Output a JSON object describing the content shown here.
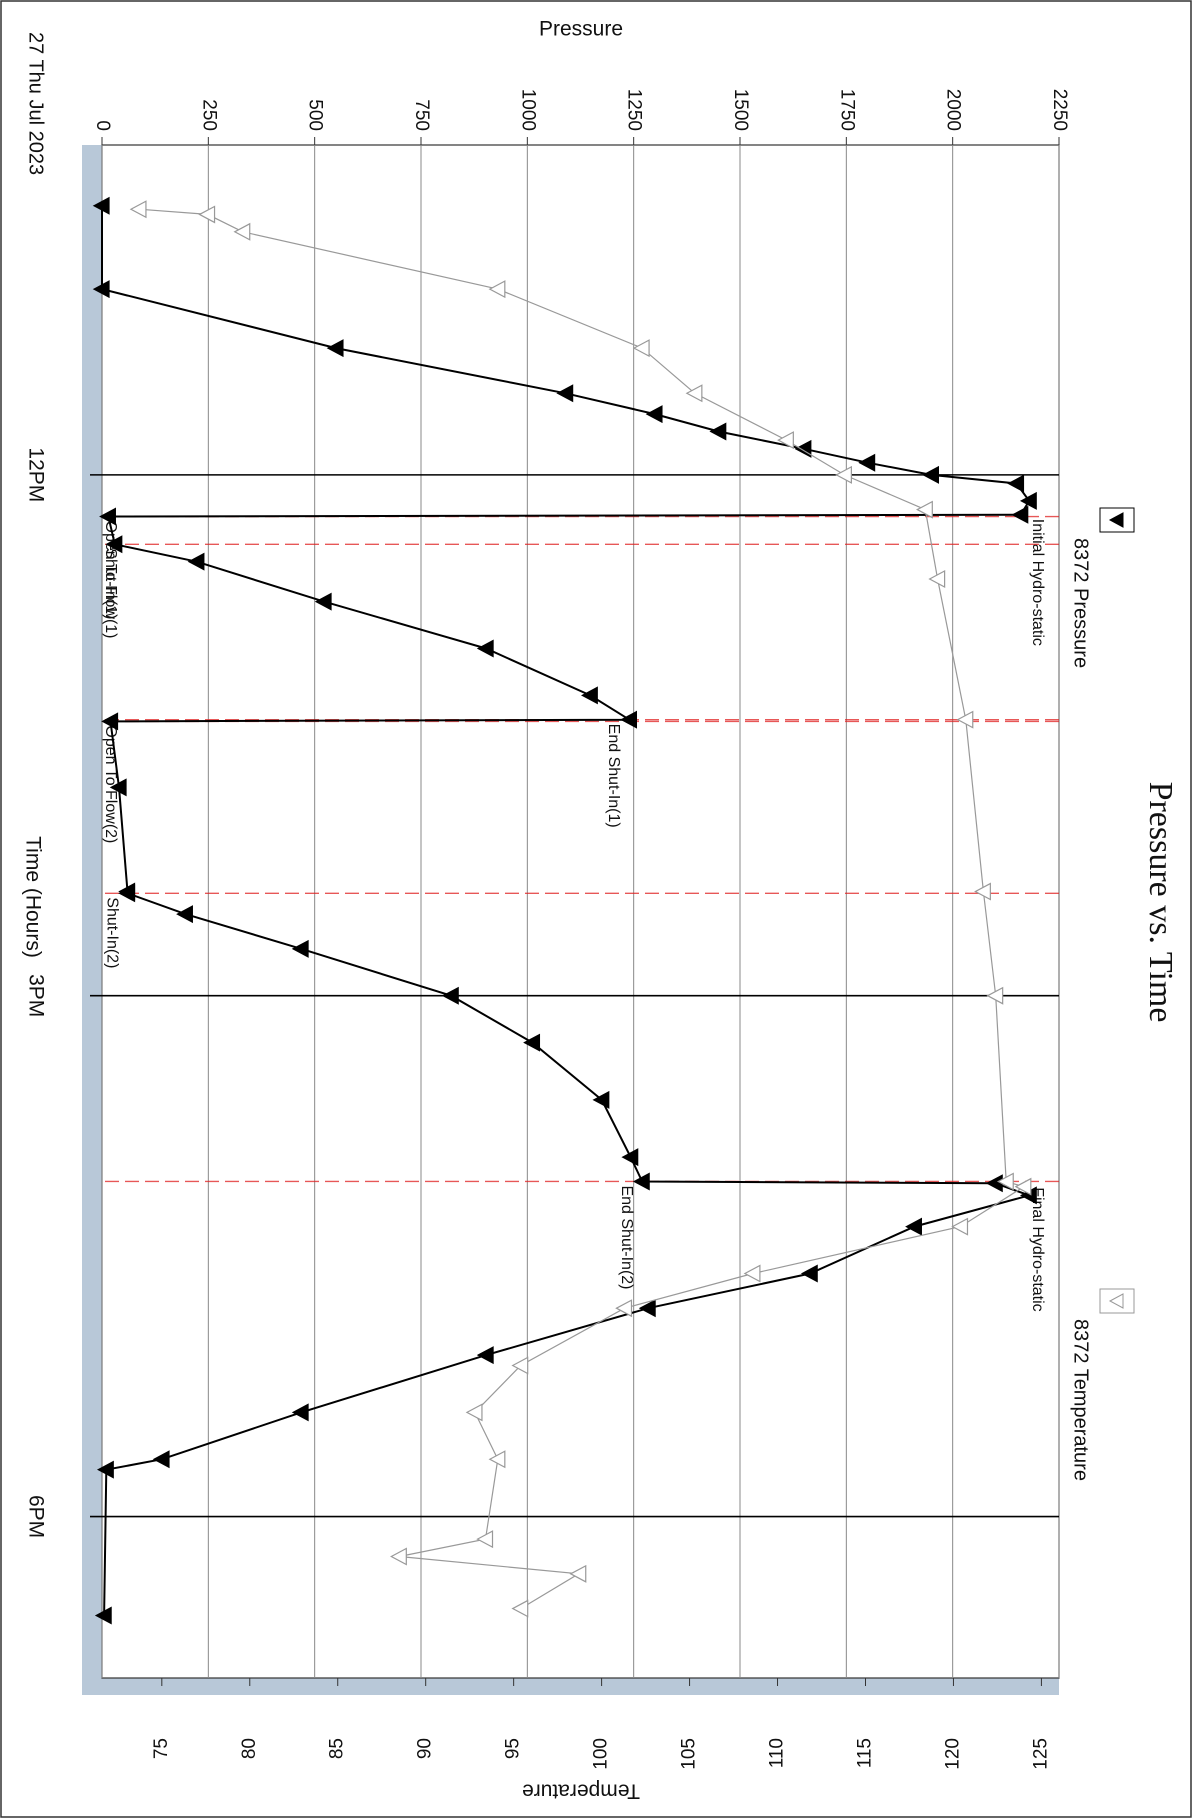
{
  "chart_data": {
    "type": "line",
    "title": "Pressure vs. Time",
    "date_label": "27 Thu Jul 2023",
    "x_label": "Time (Hours)",
    "y_label": "Pressure",
    "y2_label": "Temperature",
    "xlim": [
      10.1,
      18.93
    ],
    "xticks": [
      {
        "value": 12,
        "label": "12PM"
      },
      {
        "value": 15,
        "label": "3PM"
      },
      {
        "value": 18,
        "label": "6PM"
      }
    ],
    "ylim": [
      0,
      2250
    ],
    "yticks": [
      0,
      250,
      500,
      750,
      1000,
      1250,
      1500,
      1750,
      2000,
      2250
    ],
    "y2lim": [
      71.6,
      126
    ],
    "y2ticks": [
      75,
      80,
      85,
      90,
      95,
      100,
      105,
      110,
      115,
      120,
      125
    ],
    "grid": true,
    "series": [
      {
        "name": "8372 Pressure",
        "color": "#000000",
        "marker": "filled",
        "x": [
          10.45,
          10.93,
          11.27,
          11.53,
          11.65,
          11.75,
          11.85,
          11.93,
          12.0,
          12.05,
          12.15,
          12.23,
          12.24,
          12.4,
          12.5,
          12.73,
          13.0,
          13.27,
          13.41,
          13.42,
          13.8,
          14.4,
          14.41,
          14.53,
          14.73,
          15.0,
          15.27,
          15.6,
          15.93,
          16.07,
          16.08,
          16.15,
          16.33,
          16.6,
          16.8,
          17.07,
          17.4,
          17.67,
          17.73,
          18.57
        ],
        "values": [
          0,
          0,
          550,
          1090,
          1300,
          1450,
          1650,
          1800,
          1950,
          2150,
          2180,
          2160,
          15,
          30,
          223,
          522,
          903,
          1148,
          1240,
          20,
          40,
          60,
          60,
          196,
          468,
          821,
          1012,
          1175,
          1243,
          1270,
          2100,
          2180,
          1910,
          1665,
          1284,
          903,
          468,
          141,
          10,
          5
        ]
      },
      {
        "name": "8372 Temperature",
        "color": "#999999",
        "marker": "hollow",
        "axis": "y2",
        "x": [
          10.47,
          10.5,
          10.6,
          10.93,
          11.27,
          11.53,
          11.8,
          12.0,
          12.2,
          12.6,
          13.41,
          14.4,
          15.0,
          16.07,
          16.1,
          16.33,
          16.6,
          16.8,
          17.13,
          17.4,
          17.67,
          18.13,
          18.23,
          18.33,
          18.53
        ],
        "values": [
          73.7,
          77.6,
          79.6,
          94.1,
          102.3,
          105.3,
          110.5,
          113.8,
          118.4,
          119.1,
          120.7,
          121.7,
          122.4,
          123,
          124,
          120.4,
          108.6,
          101.3,
          95.4,
          92.8,
          94.1,
          93.4,
          88.5,
          98.7,
          95.4
        ]
      }
    ],
    "events": [
      {
        "label": "Initial Hydro-static",
        "x": 12.23,
        "color": "#000000"
      },
      {
        "label": "Open To Flow(1)",
        "x": 12.24,
        "color": "#e02020"
      },
      {
        "label": "Shut-In(1)",
        "x": 12.4,
        "color": "#e02020"
      },
      {
        "label": "End Shut-In(1)",
        "x": 13.41,
        "color": "#e02020"
      },
      {
        "label": "Open To Flow(2)",
        "x": 13.42,
        "color": "#e02020"
      },
      {
        "label": "Shut-In(2)",
        "x": 14.41,
        "color": "#e02020"
      },
      {
        "label": "End Shut-In(2)",
        "x": 16.07,
        "color": "#e02020"
      },
      {
        "label": "Final Hydro-static",
        "x": 16.08,
        "color": "#000000"
      }
    ]
  }
}
